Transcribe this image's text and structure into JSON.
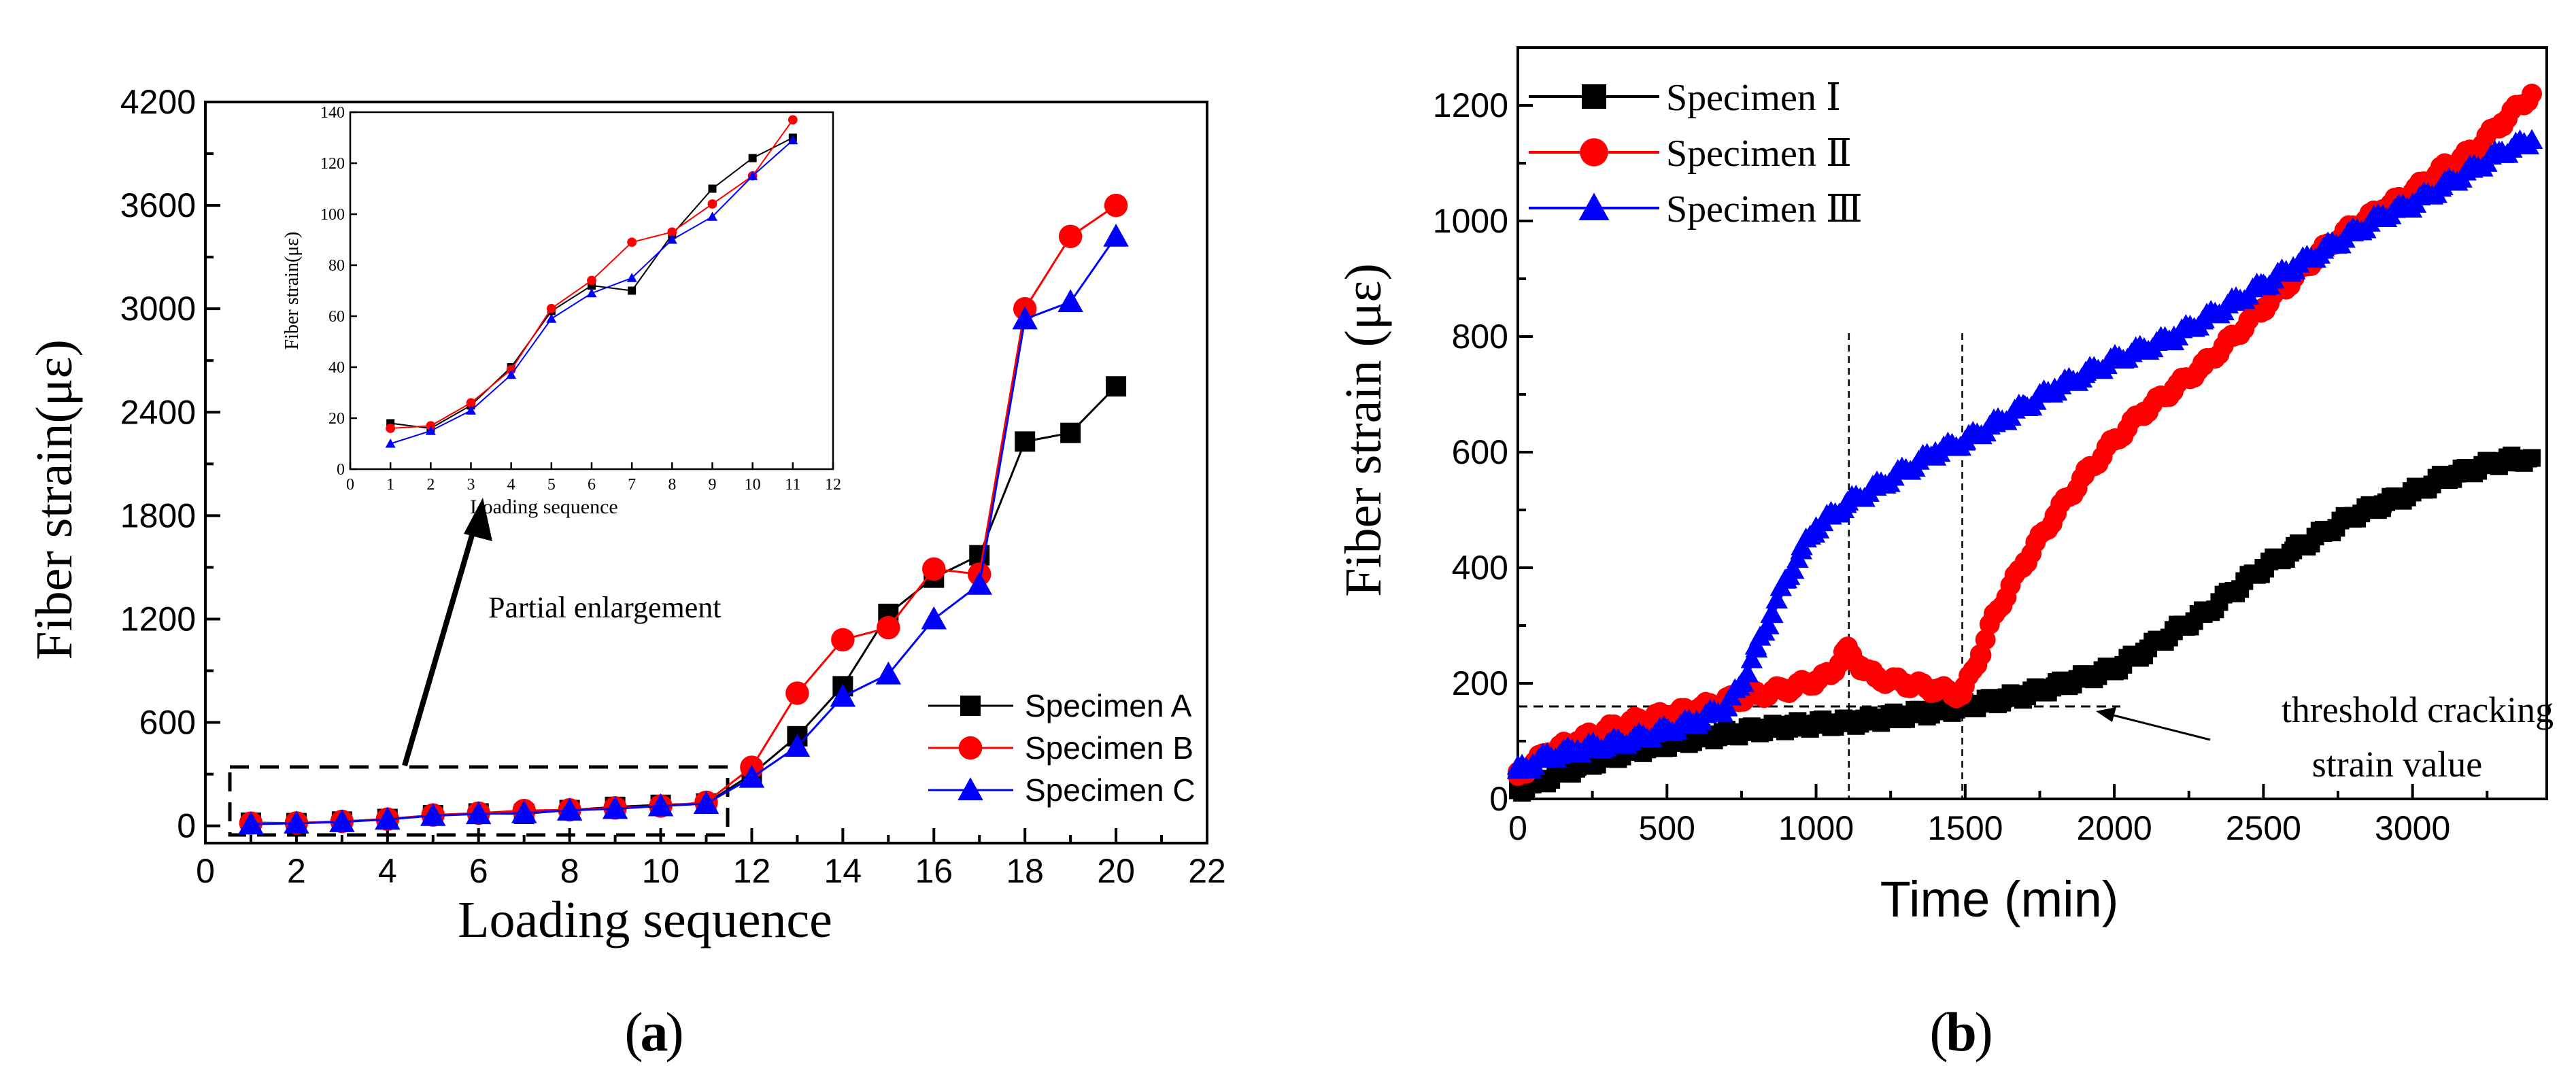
{
  "chart_data": [
    {
      "id": "a",
      "type": "line",
      "panel_label": "a",
      "xlabel": "Loading sequence",
      "ylabel": "Fiber strain(με)",
      "xlim": [
        0,
        22
      ],
      "ylim": [
        -100,
        4200
      ],
      "xticks": [
        "0",
        "2",
        "4",
        "6",
        "8",
        "10",
        "12",
        "14",
        "16",
        "18",
        "20",
        "22"
      ],
      "yticks": [
        "0",
        "600",
        "1200",
        "1800",
        "2400",
        "3000",
        "3600",
        "4200"
      ],
      "annotation": "Partial enlargement",
      "legend_position": "bottom-right",
      "x": [
        1,
        2,
        3,
        4,
        5,
        6,
        7,
        8,
        9,
        10,
        11,
        12,
        13,
        14,
        15,
        16,
        17,
        18,
        19,
        20
      ],
      "series": [
        {
          "name": "Specimen A",
          "color": "#000000",
          "marker": "square",
          "values": [
            18,
            16,
            25,
            40,
            62,
            72,
            70,
            92,
            110,
            122,
            130,
            300,
            520,
            810,
            1230,
            1440,
            1570,
            2230,
            2280,
            2550
          ]
        },
        {
          "name": "Specimen B",
          "color": "#ff0000",
          "marker": "circle",
          "values": [
            16,
            17,
            26,
            39,
            63,
            74,
            89,
            93,
            104,
            115,
            137,
            340,
            770,
            1080,
            1150,
            1490,
            1460,
            3000,
            3420,
            3600
          ]
        },
        {
          "name": "Specimen C",
          "color": "#0000ff",
          "marker": "triangle",
          "values": [
            10,
            15,
            23,
            37,
            59,
            69,
            75,
            90,
            99,
            115,
            129,
            280,
            460,
            750,
            880,
            1200,
            1400,
            2940,
            3040,
            3420
          ]
        }
      ]
    },
    {
      "id": "a-inset",
      "type": "line",
      "xlabel": "Loading sequence",
      "ylabel": "Fiber strain(με)",
      "xlim": [
        0,
        12
      ],
      "ylim": [
        0,
        140
      ],
      "xticks": [
        "0",
        "1",
        "2",
        "3",
        "4",
        "5",
        "6",
        "7",
        "8",
        "9",
        "10",
        "11",
        "12"
      ],
      "yticks": [
        "0",
        "20",
        "40",
        "60",
        "80",
        "100",
        "120",
        "140"
      ],
      "x": [
        1,
        2,
        3,
        4,
        5,
        6,
        7,
        8,
        9,
        10,
        11
      ],
      "series": [
        {
          "name": "Specimen A",
          "color": "#000000",
          "marker": "square",
          "values": [
            18,
            16,
            25,
            40,
            62,
            72,
            70,
            92,
            110,
            122,
            130
          ]
        },
        {
          "name": "Specimen B",
          "color": "#ff0000",
          "marker": "circle",
          "values": [
            16,
            17,
            26,
            39,
            63,
            74,
            89,
            93,
            104,
            115,
            137
          ]
        },
        {
          "name": "Specimen C",
          "color": "#0000ff",
          "marker": "triangle",
          "values": [
            10,
            15,
            23,
            37,
            59,
            69,
            75,
            90,
            99,
            115,
            129
          ]
        }
      ]
    },
    {
      "id": "b",
      "type": "line",
      "panel_label": "b",
      "xlabel": "Time (min)",
      "ylabel": "Fiber strain (με)",
      "xlim": [
        0,
        3450
      ],
      "ylim": [
        0,
        1300
      ],
      "xticks": [
        "0",
        "500",
        "1000",
        "1500",
        "2000",
        "2500",
        "3000"
      ],
      "yticks": [
        "0",
        "200",
        "400",
        "600",
        "800",
        "1000",
        "1200"
      ],
      "legend_position": "top-left",
      "threshold": {
        "value": 160,
        "label_line1": "threshold cracking",
        "label_line2": "strain value"
      },
      "vlines": [
        1110,
        1490
      ],
      "series": [
        {
          "name": "Specimen Ⅰ",
          "color": "#000000",
          "marker": "square",
          "x": [
            0,
            50,
            100,
            200,
            300,
            400,
            500,
            600,
            700,
            800,
            900,
            1000,
            1100,
            1200,
            1300,
            1400,
            1500,
            1600,
            1700,
            1800,
            1900,
            2000,
            2100,
            2200,
            2300,
            2400,
            2500,
            2600,
            2700,
            2800,
            2900,
            3000,
            3100,
            3200,
            3300,
            3400
          ],
          "values": [
            15,
            25,
            35,
            55,
            72,
            85,
            95,
            105,
            112,
            120,
            125,
            130,
            132,
            138,
            145,
            152,
            160,
            170,
            180,
            195,
            210,
            225,
            255,
            290,
            320,
            360,
            400,
            430,
            460,
            490,
            510,
            530,
            555,
            570,
            585,
            590
          ]
        },
        {
          "name": "Specimen Ⅱ",
          "color": "#ff0000",
          "marker": "circle",
          "x": [
            0,
            50,
            100,
            200,
            300,
            400,
            500,
            600,
            700,
            800,
            900,
            1000,
            1050,
            1100,
            1120,
            1150,
            1200,
            1300,
            1400,
            1490,
            1550,
            1600,
            1700,
            1800,
            1900,
            2000,
            2100,
            2200,
            2300,
            2400,
            2500,
            2600,
            2700,
            2800,
            2900,
            3000,
            3100,
            3200,
            3300,
            3400
          ],
          "values": [
            40,
            60,
            80,
            100,
            120,
            135,
            145,
            155,
            170,
            180,
            190,
            205,
            215,
            260,
            245,
            230,
            210,
            200,
            190,
            180,
            250,
            320,
            410,
            490,
            560,
            620,
            670,
            710,
            750,
            800,
            850,
            900,
            950,
            990,
            1020,
            1050,
            1090,
            1120,
            1170,
            1220
          ]
        },
        {
          "name": "Specimen Ⅲ",
          "color": "#0000ff",
          "marker": "triangle",
          "x": [
            0,
            50,
            100,
            200,
            300,
            400,
            500,
            600,
            700,
            750,
            800,
            850,
            900,
            950,
            1000,
            1050,
            1100,
            1200,
            1300,
            1400,
            1500,
            1600,
            1700,
            1800,
            1900,
            2000,
            2100,
            2200,
            2300,
            2400,
            2500,
            2600,
            2700,
            2800,
            2900,
            3000,
            3100,
            3200,
            3300,
            3400
          ],
          "values": [
            50,
            60,
            75,
            85,
            95,
            105,
            120,
            135,
            160,
            200,
            260,
            320,
            380,
            430,
            470,
            490,
            510,
            540,
            570,
            600,
            620,
            650,
            680,
            710,
            735,
            760,
            780,
            800,
            830,
            860,
            890,
            920,
            950,
            980,
            1010,
            1030,
            1060,
            1090,
            1120,
            1140
          ]
        }
      ]
    }
  ]
}
